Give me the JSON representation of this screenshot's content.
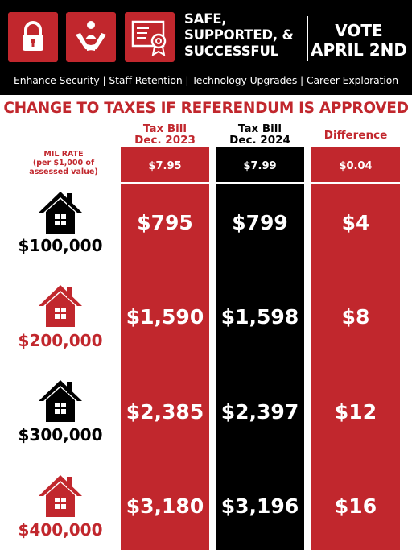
{
  "header": {
    "icons": [
      "lock-icon",
      "helping-hands-icon",
      "certificate-icon"
    ],
    "slogan": [
      "SAFE,",
      "SUPPORTED, &",
      "SUCCESSFUL"
    ],
    "vote": [
      "VOTE",
      "APRIL 2ND"
    ],
    "goals": "Enhance Security | Staff Retention | Technology Upgrades | Career Exploration"
  },
  "title": "CHANGE TO TAXES IF REFERENDUM IS APPROVED",
  "columns": {
    "c1": [
      "Tax Bill",
      "Dec. 2023"
    ],
    "c2": [
      "Tax Bill",
      "Dec. 2024"
    ],
    "c3": [
      "Difference"
    ]
  },
  "mil_rate": {
    "label": [
      "MIL RATE",
      "(per $1,000 of",
      "assessed value)"
    ],
    "values": [
      "$7.95",
      "$7.99",
      "$0.04"
    ]
  },
  "rows": [
    {
      "home": "$100,000",
      "bill_2023": "$795",
      "bill_2024": "$799",
      "difference": "$4"
    },
    {
      "home": "$200,000",
      "bill_2023": "$1,590",
      "bill_2024": "$1,598",
      "difference": "$8"
    },
    {
      "home": "$300,000",
      "bill_2023": "$2,385",
      "bill_2024": "$2,397",
      "difference": "$12"
    },
    {
      "home": "$400,000",
      "bill_2023": "$3,180",
      "bill_2024": "$3,196",
      "difference": "$16"
    }
  ],
  "colors": {
    "red": "#c1272d",
    "black": "#000000",
    "white": "#ffffff"
  }
}
